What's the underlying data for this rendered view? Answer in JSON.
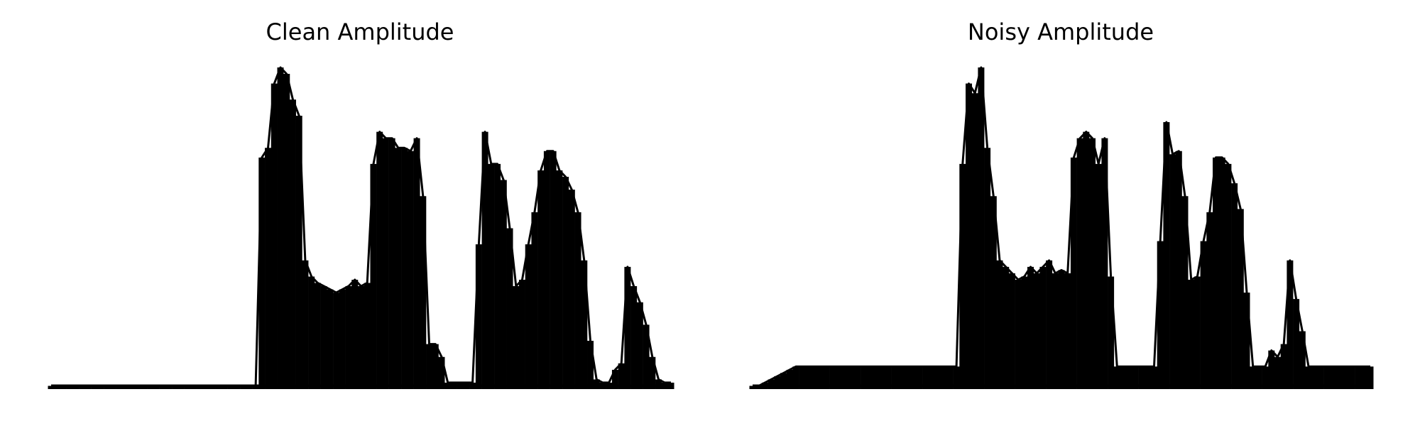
{
  "colors": {
    "line": "#000000",
    "background": "#ffffff"
  },
  "chart_data": [
    {
      "type": "area",
      "title": "Clean Amplitude",
      "xlabel": "",
      "ylabel": "",
      "axes_visible": false,
      "grid": false,
      "xlim": [
        0,
        100
      ],
      "ylim": [
        0,
        1
      ],
      "series": [
        {
          "values": [
            0.01,
            0.01,
            0.01,
            0.01,
            0.01,
            0.01,
            0.01,
            0.01,
            0.01,
            0.01,
            0.01,
            0.01,
            0.01,
            0.01,
            0.01,
            0.01,
            0.01,
            0.01,
            0.01,
            0.01,
            0.01,
            0.01,
            0.01,
            0.01,
            0.01,
            0.01,
            0.01,
            0.01,
            0.01,
            0.01,
            0.01,
            0.01,
            0.01,
            0.01,
            0.72,
            0.75,
            0.95,
            1.0,
            0.98,
            0.9,
            0.85,
            0.4,
            0.35,
            0.33,
            0.32,
            0.31,
            0.3,
            0.31,
            0.32,
            0.34,
            0.32,
            0.33,
            0.7,
            0.8,
            0.78,
            0.78,
            0.75,
            0.75,
            0.74,
            0.78,
            0.6,
            0.14,
            0.14,
            0.1,
            0.02,
            0.02,
            0.02,
            0.02,
            0.02,
            0.45,
            0.8,
            0.7,
            0.7,
            0.65,
            0.5,
            0.32,
            0.34,
            0.45,
            0.55,
            0.68,
            0.74,
            0.74,
            0.68,
            0.66,
            0.62,
            0.55,
            0.4,
            0.15,
            0.03,
            0.02,
            0.02,
            0.06,
            0.08,
            0.38,
            0.32,
            0.27,
            0.2,
            0.1,
            0.03,
            0.02,
            0.02
          ],
          "style": "dense-oscillating-fill"
        }
      ]
    },
    {
      "type": "area",
      "title": "Noisy Amplitude",
      "xlabel": "",
      "ylabel": "",
      "axes_visible": false,
      "grid": false,
      "xlim": [
        0,
        100
      ],
      "ylim": [
        0,
        1
      ],
      "series": [
        {
          "values": [
            0.01,
            0.01,
            0.02,
            0.03,
            0.04,
            0.05,
            0.06,
            0.07,
            0.07,
            0.07,
            0.07,
            0.07,
            0.07,
            0.07,
            0.07,
            0.07,
            0.07,
            0.07,
            0.07,
            0.07,
            0.07,
            0.07,
            0.07,
            0.07,
            0.07,
            0.07,
            0.07,
            0.07,
            0.07,
            0.07,
            0.07,
            0.07,
            0.07,
            0.07,
            0.7,
            0.95,
            0.92,
            1.0,
            0.75,
            0.6,
            0.4,
            0.38,
            0.36,
            0.34,
            0.35,
            0.38,
            0.36,
            0.38,
            0.4,
            0.36,
            0.37,
            0.36,
            0.72,
            0.78,
            0.8,
            0.78,
            0.7,
            0.78,
            0.35,
            0.07,
            0.07,
            0.07,
            0.07,
            0.07,
            0.07,
            0.07,
            0.46,
            0.83,
            0.73,
            0.74,
            0.6,
            0.34,
            0.35,
            0.46,
            0.55,
            0.72,
            0.72,
            0.7,
            0.64,
            0.56,
            0.3,
            0.07,
            0.07,
            0.07,
            0.12,
            0.1,
            0.14,
            0.4,
            0.28,
            0.18,
            0.07,
            0.07,
            0.07,
            0.07,
            0.07,
            0.07,
            0.07,
            0.07,
            0.07,
            0.07,
            0.07
          ],
          "style": "dense-oscillating-fill"
        }
      ]
    }
  ]
}
